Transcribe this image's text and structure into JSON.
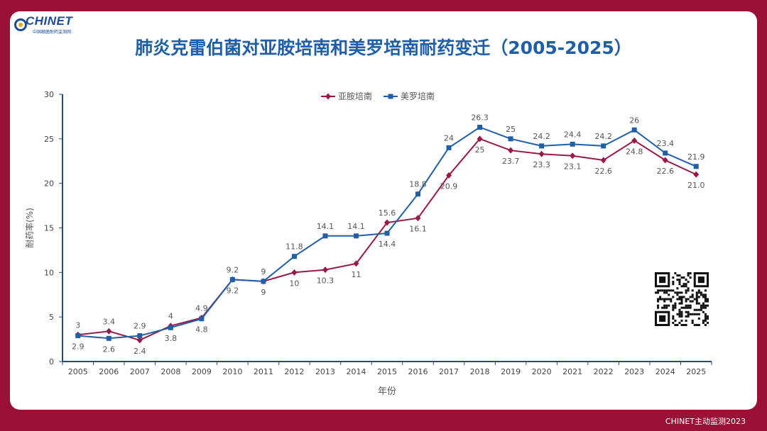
{
  "logo": {
    "name": "CHINET",
    "subtitle": "中国细菌耐药监测网"
  },
  "footer": "CHINET主动监测2023",
  "colors": {
    "background": "#9b1035",
    "title": "#1f5faa",
    "amikacin": "#9b1748",
    "meropenem": "#1f5faa",
    "axis": "#1f4e79"
  },
  "chart_data": {
    "type": "line",
    "title": "肺炎克雷伯菌对亚胺培南和美罗培南耐药变迁（2005-2025）",
    "xlabel": "年份",
    "ylabel": "耐药率(%)",
    "ylim": [
      0,
      30
    ],
    "yticks": [
      0,
      5,
      10,
      15,
      20,
      25,
      30
    ],
    "grid": false,
    "legend_position": "top-center",
    "categories": [
      "2005",
      "2006",
      "2007",
      "2008",
      "2009",
      "2010",
      "2011",
      "2012",
      "2013",
      "2014",
      "2015",
      "2016",
      "2017",
      "2018",
      "2019",
      "2020",
      "2021",
      "2022",
      "2023",
      "2024",
      "2025"
    ],
    "series": [
      {
        "name": "亚胺培南",
        "color": "#9b1748",
        "marker": "diamond",
        "values": [
          3,
          3.4,
          2.4,
          4,
          4.9,
          9.2,
          9,
          10,
          10.3,
          11,
          15.6,
          16.1,
          20.9,
          25,
          23.7,
          23.3,
          23.1,
          22.6,
          24.8,
          22.6,
          21.0
        ],
        "labels": [
          "3",
          "3.4",
          "2.4",
          "4",
          "4.9",
          "9.2",
          "9",
          "10",
          "10.3",
          "11",
          "15.6",
          "16.1",
          "20.9",
          "25",
          "23.7",
          "23.3",
          "23.1",
          "22.6",
          "24.8",
          "22.6",
          "21.0"
        ]
      },
      {
        "name": "美罗培南",
        "color": "#1f5faa",
        "marker": "square",
        "values": [
          2.9,
          2.6,
          2.9,
          3.8,
          4.8,
          9.2,
          9,
          11.8,
          14.1,
          14.1,
          14.4,
          18.8,
          24,
          26.3,
          25,
          24.2,
          24.4,
          24.2,
          26,
          23.4,
          21.9
        ],
        "labels": [
          "2.9",
          "2.6",
          "2.9",
          "3.8",
          "4.8",
          "9.2",
          "9",
          "11.8",
          "14.1",
          "14.1",
          "14.4",
          "18.8",
          "24",
          "26.3",
          "25",
          "24.2",
          "24.4",
          "24.2",
          "26",
          "23.4",
          "21.9"
        ]
      }
    ]
  }
}
